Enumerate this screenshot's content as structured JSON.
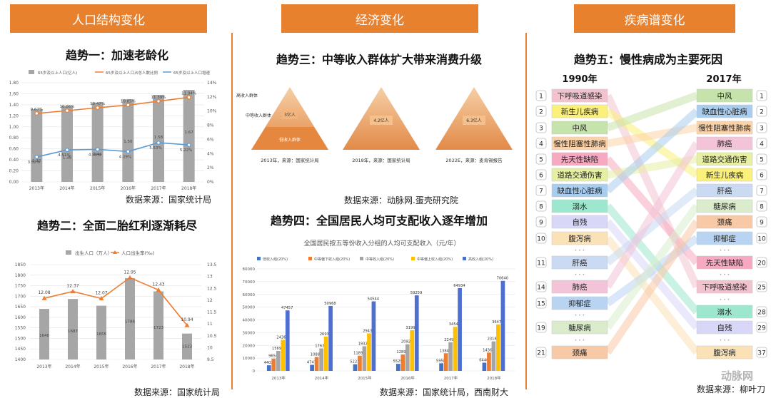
{
  "headers": {
    "left": "人口结构变化",
    "mid": "经济变化",
    "right": "疾病谱变化"
  },
  "trends": {
    "t1": "趋势一：加速老龄化",
    "t2": "趋势二：全面二胎红利逐渐耗尽",
    "t3": "趋势三：中等收入群体扩大带来消费升级",
    "t4": "趋势四：全国居民人均可支配收入逐年增加",
    "t5": "趋势五：慢性病成为主要死因"
  },
  "sources": {
    "s1": "数据来源：国家统计局",
    "s2": "数据来源：国家统计局",
    "s3": "数据来源：动脉网.蛋壳研究院",
    "s4": "数据来源：国家统计局，西南财大",
    "s5": "数据来源：柳叶刀"
  },
  "watermark": "动脉网",
  "chart_data": [
    {
      "type": "bar",
      "categories": [
        "2013年",
        "2014年",
        "2015年",
        "2016年",
        "2017年",
        "2018年"
      ],
      "series": [
        {
          "name": "65岁及以上人口(亿人)",
          "kind": "bar",
          "axis": "left",
          "color": "#a6a6a6",
          "values": [
            1.32,
            1.38,
            1.44,
            1.5,
            1.58,
            1.67
          ]
        },
        {
          "name": "65岁及以上人口占总人数比例",
          "kind": "line",
          "axis": "right",
          "color": "#ed7d31",
          "values": [
            9.67,
            10.06,
            10.47,
            10.85,
            11.39,
            11.94
          ],
          "labels": [
            "9.67%",
            "10.06%",
            "10.47%",
            "10.85%",
            "11.39%",
            "11.94%"
          ]
        },
        {
          "name": "65岁及以上人口增速",
          "kind": "line",
          "axis": "right",
          "color": "#5b9bd5",
          "values": [
            3.52,
            4.51,
            4.59,
            4.29,
            5.53,
            5.22
          ],
          "labels": [
            "3.52%",
            "4.51%",
            "4.59%",
            "4.29%",
            "5.53%",
            "5.22%"
          ]
        }
      ],
      "y_left_ticks": [
        "0.00",
        "0.20",
        "0.40",
        "0.60",
        "0.80",
        "1.00",
        "1.20",
        "1.40",
        "1.60",
        "1.80"
      ],
      "y_right_ticks": [
        "0%",
        "2%",
        "4%",
        "6%",
        "8%",
        "10%",
        "12%",
        "14%"
      ],
      "ylim_left": [
        0,
        1.8
      ],
      "ylim_right": [
        0,
        14
      ]
    },
    {
      "type": "bar",
      "categories": [
        "2013年",
        "2014年",
        "2015年",
        "2016年",
        "2017年",
        "2018年"
      ],
      "series": [
        {
          "name": "出生人口（万人）",
          "kind": "bar",
          "axis": "left",
          "color": "#a6a6a6",
          "values": [
            1640,
            1687,
            1655,
            1786,
            1723,
            1523
          ]
        },
        {
          "name": "人口出生率(‰)",
          "kind": "line",
          "axis": "right",
          "color": "#ed7d31",
          "values": [
            12.08,
            12.37,
            12.07,
            12.95,
            12.43,
            10.94
          ]
        }
      ],
      "y_left_ticks": [
        "1400",
        "1450",
        "1500",
        "1550",
        "1600",
        "1650",
        "1700",
        "1750",
        "1800",
        "1850"
      ],
      "y_right_ticks": [
        "9.5",
        "10",
        "10.5",
        "11",
        "11.5",
        "12",
        "12.5",
        "13",
        "13.5"
      ],
      "ylim_left": [
        1400,
        1850
      ],
      "ylim_right": [
        9.5,
        13.5
      ]
    },
    {
      "type": "pyramid",
      "pyramids": [
        {
          "tier_labels": [
            "高收入群体",
            "中等收入群体",
            "低收入群体"
          ],
          "middle_label": "3亿人",
          "caption": "2013年，来源：国家统计局"
        },
        {
          "middle_label": "4.2亿人",
          "caption": "2018年，来源：国家统计局"
        },
        {
          "middle_label": "6.3亿人",
          "caption": "2022E，来源：麦肯锡报告"
        }
      ]
    },
    {
      "type": "bar",
      "title": "全国居民按五等份收入分组的人均可支配收入（元/年）",
      "categories": [
        "2013年",
        "2014年",
        "2015年",
        "2016年",
        "2017年",
        "2018年"
      ],
      "series": [
        {
          "name": "低收入组(20%)",
          "color": "#4472c4",
          "values": [
            4402,
            4747,
            5221,
            5529,
            5958,
            6440
          ]
        },
        {
          "name": "中等偏下收入组(20%)",
          "color": "#ed7d31",
          "values": [
            9654,
            10887,
            11894,
            12899,
            13843,
            14361
          ]
        },
        {
          "name": "中等收入组(20%)",
          "color": "#a5a5a5",
          "values": [
            15698,
            17631,
            19320,
            20924,
            22495,
            23189
          ]
        },
        {
          "name": "中等偏上收入组(20%)",
          "color": "#ffc000",
          "values": [
            24361,
            26937,
            29438,
            31990,
            34547,
            36471
          ]
        },
        {
          "name": "高收入组(20%)",
          "color": "#4f6fd0",
          "values": [
            47457,
            50968,
            54544,
            59259,
            64934,
            70640
          ]
        }
      ],
      "y_ticks": [
        "0",
        "10000",
        "20000",
        "30000",
        "40000",
        "50000",
        "60000",
        "70000",
        "80000"
      ],
      "ylim": [
        0,
        80000
      ]
    }
  ],
  "ranking": {
    "year_left": "1990年",
    "year_right": "2017年",
    "ellipsis": "• • •",
    "left": [
      {
        "rank": "1",
        "label": "下呼吸道感染",
        "color": "#f3c2cf"
      },
      {
        "rank": "2",
        "label": "新生儿疾病",
        "color": "#fbf17a"
      },
      {
        "rank": "3",
        "label": "中风",
        "color": "#c6e3ac"
      },
      {
        "rank": "4",
        "label": "慢性阻塞性肺病",
        "color": "#fcd3a8"
      },
      {
        "rank": "5",
        "label": "先天性缺陷",
        "color": "#f6a9c0"
      },
      {
        "rank": "6",
        "label": "道路交通伤害",
        "color": "#e6efa2"
      },
      {
        "rank": "7",
        "label": "缺血性心脏病",
        "color": "#a9cdee"
      },
      {
        "rank": "8",
        "label": "溺水",
        "color": "#9ce7cd"
      },
      {
        "rank": "9",
        "label": "自残",
        "color": "#d8d7f7"
      },
      {
        "rank": "10",
        "label": "腹泻病",
        "color": "#fbe2b6"
      },
      {
        "rank": "11",
        "label": "肝癌",
        "color": "#c9daf2"
      },
      {
        "rank": "14",
        "label": "肺癌",
        "color": "#f3c3d7"
      },
      {
        "rank": "15",
        "label": "抑郁症",
        "color": "#b9d4f2"
      },
      {
        "rank": "19",
        "label": "糖尿病",
        "color": "#dbeccd"
      },
      {
        "rank": "21",
        "label": "颈痛",
        "color": "#f8c9a6"
      }
    ],
    "right": [
      {
        "rank": "1",
        "label": "中风",
        "color": "#c6e3ac"
      },
      {
        "rank": "2",
        "label": "缺血性心脏病",
        "color": "#a9cdee"
      },
      {
        "rank": "3",
        "label": "慢性阻塞性肺病",
        "color": "#fcd3a8"
      },
      {
        "rank": "4",
        "label": "肺癌",
        "color": "#f3c3d7"
      },
      {
        "rank": "5",
        "label": "道路交通伤害",
        "color": "#e6efa2"
      },
      {
        "rank": "6",
        "label": "新生儿疾病",
        "color": "#fbf17a"
      },
      {
        "rank": "7",
        "label": "肝癌",
        "color": "#c9daf2"
      },
      {
        "rank": "8",
        "label": "糖尿病",
        "color": "#dbeccd"
      },
      {
        "rank": "9",
        "label": "颈痛",
        "color": "#f8c9a6"
      },
      {
        "rank": "10",
        "label": "抑郁症",
        "color": "#b9d4f2"
      },
      {
        "rank": "20",
        "label": "先天性缺陷",
        "color": "#f6a9c0"
      },
      {
        "rank": "25",
        "label": "下呼吸道感染",
        "color": "#f3c2cf"
      },
      {
        "rank": "28",
        "label": "溺水",
        "color": "#9ce7cd"
      },
      {
        "rank": "29",
        "label": "自残",
        "color": "#d8d7f7"
      },
      {
        "rank": "37",
        "label": "腹泻病",
        "color": "#fbe2b6"
      }
    ]
  }
}
